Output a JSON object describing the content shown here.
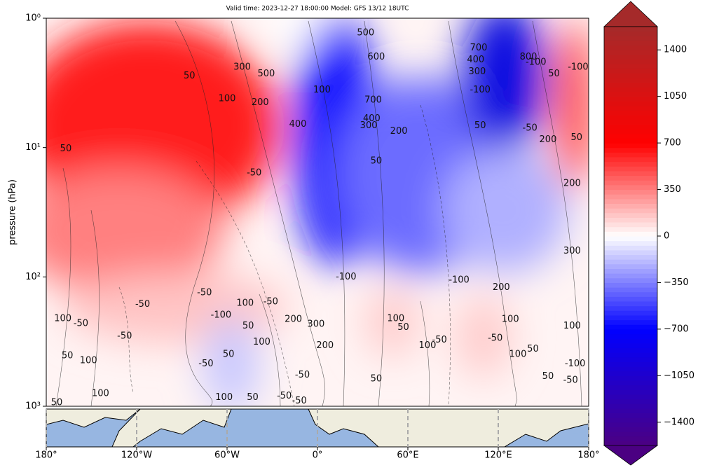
{
  "chart_data": {
    "type": "contour",
    "title": "Valid time: 2023-12-27 18:00:00 Model: GFS 13/12 18UTC",
    "ylabel": "pressure (hPa)",
    "yscale": "log",
    "ylim": [
      1000,
      1
    ],
    "yticks": [
      {
        "value": 1,
        "label": "10⁰"
      },
      {
        "value": 10,
        "label": "10¹"
      },
      {
        "value": 100,
        "label": "10²"
      },
      {
        "value": 1000,
        "label": "10³"
      }
    ],
    "xlim": [
      -180,
      180
    ],
    "xticks": [
      {
        "value": -180,
        "label": "180°"
      },
      {
        "value": -120,
        "label": "120°W"
      },
      {
        "value": -60,
        "label": "60°W"
      },
      {
        "value": 0,
        "label": "0°"
      },
      {
        "value": 60,
        "label": "60°E"
      },
      {
        "value": 120,
        "label": "120°E"
      },
      {
        "value": 180,
        "label": "180°"
      }
    ],
    "colorbar": {
      "lim": [
        -1575,
        1575
      ],
      "ticks": [
        {
          "value": -1400,
          "label": "−1400"
        },
        {
          "value": -1050,
          "label": "−1050"
        },
        {
          "value": -700,
          "label": "−700"
        },
        {
          "value": -350,
          "label": "−350"
        },
        0,
        350,
        700,
        1050,
        1400
      ],
      "colorscale": [
        {
          "value": -1575,
          "color": "#4b0082"
        },
        {
          "value": -700,
          "color": "#0000ff"
        },
        {
          "value": 0,
          "color": "#ffffff"
        },
        {
          "value": 700,
          "color": "#ff0000"
        },
        {
          "value": 1575,
          "color": "#a52a2a"
        }
      ]
    },
    "contour_labels": [
      {
        "x": -85,
        "y": 2.8,
        "value": 50
      },
      {
        "x": -50,
        "y": 2.4,
        "value": 300
      },
      {
        "x": -34,
        "y": 2.7,
        "value": 500
      },
      {
        "x": -60,
        "y": 4.2,
        "value": 100
      },
      {
        "x": -38,
        "y": 4.5,
        "value": 200
      },
      {
        "x": -167,
        "y": 10.2,
        "value": 50
      },
      {
        "x": -13,
        "y": 6.6,
        "value": 400
      },
      {
        "x": -42,
        "y": 15.7,
        "value": -50
      },
      {
        "x": 3,
        "y": 3.6,
        "value": 100
      },
      {
        "x": 32,
        "y": 1.3,
        "value": 500
      },
      {
        "x": 39,
        "y": 2.0,
        "value": 600
      },
      {
        "x": 37,
        "y": 4.3,
        "value": 700
      },
      {
        "x": 36,
        "y": 6.0,
        "value": 400
      },
      {
        "x": 34,
        "y": 6.8,
        "value": 300
      },
      {
        "x": 54,
        "y": 7.5,
        "value": 200
      },
      {
        "x": 39,
        "y": 12.7,
        "value": 50
      },
      {
        "x": 105,
        "y": 2.1,
        "value": 400
      },
      {
        "x": 107,
        "y": 1.7,
        "value": 700
      },
      {
        "x": 106,
        "y": 2.6,
        "value": 300
      },
      {
        "x": 108,
        "y": 3.6,
        "value": -100
      },
      {
        "x": 173,
        "y": 2.4,
        "value": -100
      },
      {
        "x": 157,
        "y": 2.7,
        "value": 50
      },
      {
        "x": 145,
        "y": 2.2,
        "value": -100
      },
      {
        "x": 140,
        "y": 2.0,
        "value": 800
      },
      {
        "x": 108,
        "y": 6.8,
        "value": 50
      },
      {
        "x": 141,
        "y": 7.1,
        "value": -50
      },
      {
        "x": 153,
        "y": 8.7,
        "value": 200
      },
      {
        "x": 172,
        "y": 8.4,
        "value": 50
      },
      {
        "x": 169,
        "y": 19,
        "value": 200
      },
      {
        "x": 169,
        "y": 63,
        "value": 300
      },
      {
        "x": 94,
        "y": 106,
        "value": -100
      },
      {
        "x": 122,
        "y": 121,
        "value": 200
      },
      {
        "x": 19,
        "y": 100,
        "value": -100
      },
      {
        "x": -48,
        "y": 160,
        "value": 100
      },
      {
        "x": -31,
        "y": 156,
        "value": -50
      },
      {
        "x": -16,
        "y": 213,
        "value": 200
      },
      {
        "x": -1,
        "y": 233,
        "value": 300
      },
      {
        "x": 5,
        "y": 340,
        "value": 200
      },
      {
        "x": -116,
        "y": 163,
        "value": -50
      },
      {
        "x": -75,
        "y": 133,
        "value": -50
      },
      {
        "x": -64,
        "y": 198,
        "value": -100
      },
      {
        "x": -46,
        "y": 240,
        "value": 50
      },
      {
        "x": -37,
        "y": 320,
        "value": 100
      },
      {
        "x": -128,
        "y": 287,
        "value": -50
      },
      {
        "x": -157,
        "y": 229,
        "value": -50
      },
      {
        "x": -169,
        "y": 210,
        "value": 100
      },
      {
        "x": -166,
        "y": 407,
        "value": 50
      },
      {
        "x": -152,
        "y": 445,
        "value": 100
      },
      {
        "x": -74,
        "y": 470,
        "value": -50
      },
      {
        "x": -59,
        "y": 398,
        "value": 50
      },
      {
        "x": -10,
        "y": 573,
        "value": -50
      },
      {
        "x": 39,
        "y": 614,
        "value": 50
      },
      {
        "x": 52,
        "y": 210,
        "value": 100
      },
      {
        "x": 57,
        "y": 246,
        "value": 50
      },
      {
        "x": 73,
        "y": 340,
        "value": 100
      },
      {
        "x": 81,
        "y": 307,
        "value": -50
      },
      {
        "x": 118,
        "y": 298,
        "value": -50
      },
      {
        "x": 128,
        "y": 213,
        "value": 100
      },
      {
        "x": 133,
        "y": 398,
        "value": 100
      },
      {
        "x": 143,
        "y": 361,
        "value": 50
      },
      {
        "x": 153,
        "y": 590,
        "value": 50
      },
      {
        "x": 169,
        "y": 240,
        "value": 100
      },
      {
        "x": 171,
        "y": 470,
        "value": -100
      },
      {
        "x": 168,
        "y": 631,
        "value": -50
      },
      {
        "x": -22,
        "y": 835,
        "value": -50
      },
      {
        "x": -12,
        "y": 910,
        "value": -50
      },
      {
        "x": -43,
        "y": 855,
        "value": 50
      },
      {
        "x": -62,
        "y": 855,
        "value": 100
      },
      {
        "x": -144,
        "y": 800,
        "value": 100
      },
      {
        "x": -173,
        "y": 940,
        "value": 50
      }
    ]
  }
}
